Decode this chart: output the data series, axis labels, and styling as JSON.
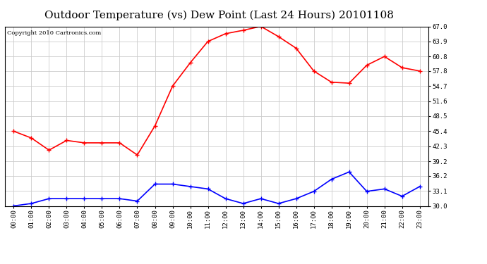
{
  "title": "Outdoor Temperature (vs) Dew Point (Last 24 Hours) 20101108",
  "copyright": "Copyright 2010 Cartronics.com",
  "hours": [
    "00:00",
    "01:00",
    "02:00",
    "03:00",
    "04:00",
    "05:00",
    "06:00",
    "07:00",
    "08:00",
    "09:00",
    "10:00",
    "11:00",
    "12:00",
    "13:00",
    "14:00",
    "15:00",
    "16:00",
    "17:00",
    "18:00",
    "19:00",
    "20:00",
    "21:00",
    "22:00",
    "23:00"
  ],
  "temp": [
    45.4,
    44.0,
    41.5,
    43.5,
    43.0,
    43.0,
    43.0,
    40.5,
    46.5,
    54.7,
    59.5,
    63.9,
    65.5,
    66.2,
    67.0,
    64.9,
    62.5,
    57.8,
    55.5,
    55.3,
    59.0,
    60.8,
    58.5,
    57.8
  ],
  "dew": [
    30.0,
    30.5,
    31.5,
    31.5,
    31.5,
    31.5,
    31.5,
    31.0,
    34.5,
    34.5,
    34.0,
    33.5,
    31.5,
    30.5,
    31.5,
    30.5,
    31.5,
    33.0,
    35.5,
    37.0,
    33.0,
    33.5,
    32.0,
    34.0
  ],
  "temp_color": "#ff0000",
  "dew_color": "#0000ff",
  "bg_color": "#ffffff",
  "grid_color": "#cccccc",
  "ymin": 30.0,
  "ymax": 67.0,
  "yticks": [
    30.0,
    33.1,
    36.2,
    39.2,
    42.3,
    45.4,
    48.5,
    51.6,
    54.7,
    57.8,
    60.8,
    63.9,
    67.0
  ],
  "title_fontsize": 11,
  "copyright_fontsize": 6,
  "tick_fontsize": 6.5
}
